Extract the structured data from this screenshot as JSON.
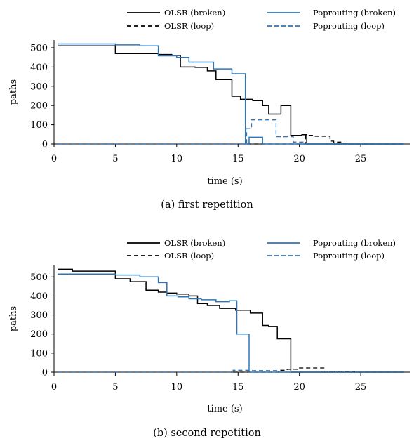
{
  "chart_data": [
    {
      "type": "line",
      "caption": "(a) first repetition",
      "xlabel": "time (s)",
      "ylabel": "paths",
      "xlim": [
        0,
        29
      ],
      "ylim": [
        0,
        540
      ],
      "xticks": [
        0,
        5,
        10,
        15,
        20,
        25
      ],
      "yticks": [
        0,
        100,
        200,
        300,
        400,
        500
      ],
      "legend": "top-outside",
      "series": [
        {
          "name": "OLSR (broken)",
          "color": "#000000",
          "dash": "solid",
          "x": [
            0.3,
            5,
            5,
            8.5,
            8.5,
            9.6,
            9.6,
            10.3,
            10.3,
            11.5,
            11.5,
            12.5,
            12.5,
            13.2,
            13.2,
            14.5,
            14.5,
            15.2,
            15.2,
            16.2,
            16.2,
            17,
            17,
            17.5,
            17.5,
            18.2,
            18.2,
            18.5,
            18.5,
            19.3,
            19.3,
            20.2,
            20.2,
            20.6,
            20.6,
            28.5
          ],
          "y": [
            510,
            510,
            470,
            470,
            465,
            465,
            460,
            460,
            400,
            400,
            398,
            398,
            380,
            380,
            335,
            335,
            248,
            248,
            232,
            232,
            225,
            225,
            200,
            200,
            155,
            155,
            155,
            155,
            200,
            200,
            45,
            45,
            48,
            48,
            0,
            0
          ]
        },
        {
          "name": "OLSR (loop)",
          "color": "#000000",
          "dash": "dashed",
          "x": [
            0.3,
            20.5,
            20.5,
            21.2,
            21.2,
            22.5,
            22.5,
            22.8,
            22.8,
            23.5,
            23.5,
            24,
            24,
            28.5
          ],
          "y": [
            0,
            0,
            45,
            45,
            40,
            40,
            15,
            15,
            10,
            10,
            5,
            5,
            0,
            0
          ]
        },
        {
          "name": "Poprouting (broken)",
          "color": "#2e75b6",
          "dash": "solid",
          "x": [
            0.3,
            5,
            5,
            7,
            7,
            8.5,
            8.5,
            9,
            9,
            10,
            10,
            11,
            11,
            12,
            12,
            13,
            13,
            13.3,
            13.3,
            14.5,
            14.5,
            15.6,
            15.6,
            15.9,
            15.9,
            16.4,
            16.4,
            17,
            17,
            17.2,
            17.2,
            28.5
          ],
          "y": [
            520,
            520,
            515,
            515,
            510,
            510,
            458,
            458,
            458,
            458,
            450,
            450,
            425,
            425,
            425,
            425,
            390,
            390,
            390,
            390,
            365,
            365,
            0,
            0,
            35,
            35,
            35,
            35,
            0,
            0,
            0,
            0
          ]
        },
        {
          "name": "Poprouting (loop)",
          "color": "#2e75b6",
          "dash": "dashed",
          "x": [
            0.3,
            15.7,
            15.7,
            16.1,
            16.1,
            18.1,
            18.1,
            18.8,
            18.8,
            19.5,
            19.5,
            20.3,
            20.3,
            28.5
          ],
          "y": [
            0,
            0,
            80,
            80,
            125,
            125,
            38,
            38,
            38,
            38,
            10,
            10,
            0,
            0
          ]
        }
      ]
    },
    {
      "type": "line",
      "caption": "(b) second repetition",
      "xlabel": "time (s)",
      "ylabel": "paths",
      "xlim": [
        0,
        29
      ],
      "ylim": [
        0,
        560
      ],
      "xticks": [
        0,
        5,
        10,
        15,
        20,
        25
      ],
      "yticks": [
        0,
        100,
        200,
        300,
        400,
        500
      ],
      "legend": "top-outside",
      "series": [
        {
          "name": "OLSR (broken)",
          "color": "#000000",
          "dash": "solid",
          "x": [
            0.3,
            1.5,
            1.5,
            4.5,
            4.5,
            5,
            5,
            6.2,
            6.2,
            7,
            7,
            7.5,
            7.5,
            8.5,
            8.5,
            9.2,
            9.2,
            10,
            10,
            11,
            11,
            11.7,
            11.7,
            12.5,
            12.5,
            13.5,
            13.5,
            14.8,
            14.8,
            16,
            16,
            17,
            17,
            17.5,
            17.5,
            18.2,
            18.2,
            19.3,
            19.3,
            19.7,
            19.7,
            28.5
          ],
          "y": [
            540,
            540,
            530,
            530,
            530,
            530,
            490,
            490,
            475,
            475,
            475,
            475,
            430,
            430,
            420,
            420,
            415,
            415,
            410,
            410,
            400,
            400,
            360,
            360,
            350,
            350,
            335,
            335,
            325,
            325,
            310,
            310,
            245,
            245,
            240,
            240,
            175,
            175,
            0,
            0,
            0,
            0
          ]
        },
        {
          "name": "OLSR (loop)",
          "color": "#000000",
          "dash": "dashed",
          "x": [
            0.3,
            18.3,
            18.3,
            19,
            19,
            20,
            20,
            21.5,
            21.5,
            22,
            22,
            23.5,
            23.5,
            24.5,
            24.5,
            28.5
          ],
          "y": [
            0,
            0,
            10,
            10,
            15,
            15,
            22,
            22,
            22,
            22,
            5,
            5,
            3,
            3,
            0,
            0
          ]
        },
        {
          "name": "Poprouting (broken)",
          "color": "#2e75b6",
          "dash": "solid",
          "x": [
            0.3,
            5,
            5,
            7,
            7,
            8.5,
            8.5,
            9.2,
            9.2,
            10.1,
            10.1,
            11,
            11,
            12,
            12,
            13.2,
            13.2,
            14.3,
            14.3,
            14.9,
            14.9,
            15.9,
            15.9,
            16.2,
            16.2,
            28.5
          ],
          "y": [
            515,
            515,
            510,
            510,
            500,
            500,
            470,
            470,
            400,
            400,
            395,
            395,
            385,
            385,
            380,
            380,
            370,
            370,
            375,
            375,
            200,
            200,
            0,
            0,
            0,
            0
          ]
        },
        {
          "name": "Poprouting (loop)",
          "color": "#2e75b6",
          "dash": "dashed",
          "x": [
            0.3,
            14.6,
            14.6,
            16,
            16,
            18.2,
            18.2,
            28.5
          ],
          "y": [
            0,
            0,
            10,
            10,
            8,
            8,
            0,
            0
          ]
        }
      ]
    }
  ]
}
